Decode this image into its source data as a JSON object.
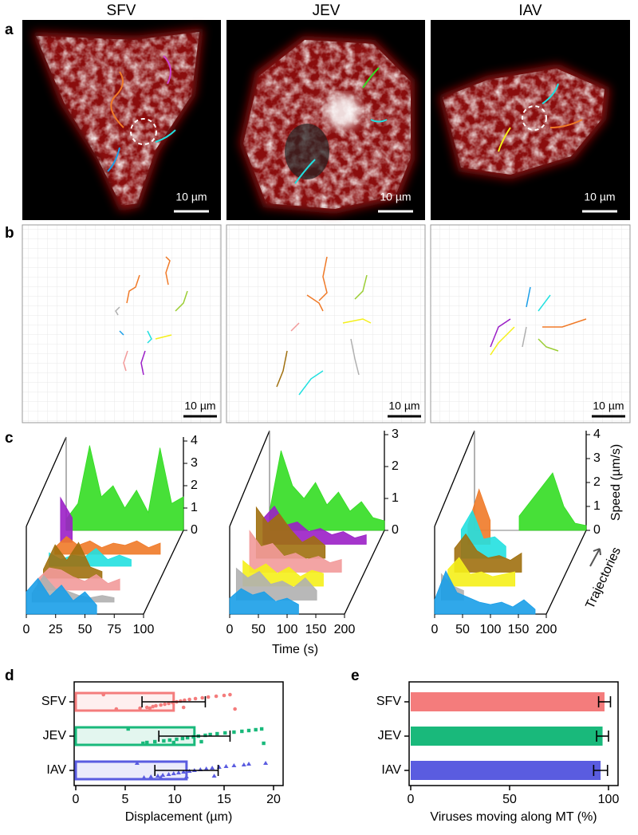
{
  "panel_labels": [
    "a",
    "b",
    "c",
    "d",
    "e"
  ],
  "columns": [
    "SFV",
    "JEV",
    "IAV"
  ],
  "scale_bar": "10 µm",
  "chart_data": [
    {
      "type": "speed-3d",
      "x": [
        0,
        10,
        20,
        30,
        40,
        50,
        60,
        70,
        80,
        90,
        100
      ],
      "xlim": [
        0,
        100
      ],
      "xticks": [
        0,
        25,
        50,
        75,
        100
      ],
      "ylim": [
        0,
        4
      ],
      "yticks": [
        0,
        1,
        2,
        3,
        4
      ],
      "series": [
        {
          "color": "#33dd22",
          "values": [
            0.5,
            1.2,
            3.8,
            1.5,
            2.0,
            1.0,
            1.8,
            0.8,
            3.7,
            1.2,
            1.5
          ]
        },
        {
          "color": "#9b1fc7",
          "values": [
            2.0,
            1.1,
            null,
            null,
            null,
            null,
            null,
            null,
            null,
            null,
            null
          ]
        },
        {
          "color": "#f07a28",
          "values": [
            0.3,
            0.8,
            0.4,
            0.6,
            0.3,
            0.5,
            0.4,
            0.6,
            0.3,
            0.5,
            null
          ]
        },
        {
          "color": "#22e0e0",
          "values": [
            0.6,
            0.3,
            0.5,
            0.4,
            0.8,
            0.3,
            0.5,
            0.3,
            null,
            null,
            null
          ]
        },
        {
          "color": "#a0700f",
          "values": [
            0.4,
            1.5,
            0.8,
            1.6,
            0.5,
            0.3,
            null,
            null,
            null,
            null,
            null
          ]
        },
        {
          "color": "#f29a9a",
          "values": [
            0.5,
            1.0,
            0.9,
            0.6,
            0.4,
            0.7,
            0.3,
            0.5,
            null,
            null,
            null
          ]
        },
        {
          "color": "#b0b0b0",
          "values": [
            0.4,
            1.2,
            0.6,
            0.5,
            0.3,
            0.2,
            0.3,
            0.2,
            null,
            null,
            null
          ]
        },
        {
          "color": "#1a9ee8",
          "values": [
            1.0,
            1.6,
            0.8,
            1.3,
            0.6,
            1.0,
            0.4,
            null,
            null,
            null,
            null
          ]
        }
      ]
    },
    {
      "type": "speed-3d",
      "x": [
        0,
        20,
        40,
        60,
        80,
        100,
        120,
        140,
        160,
        180,
        200
      ],
      "xlim": [
        0,
        200
      ],
      "xticks": [
        0,
        50,
        100,
        150,
        200
      ],
      "ylim": [
        0,
        3
      ],
      "yticks": [
        0,
        1,
        2,
        3
      ],
      "xlabel": "Time (s)",
      "series": [
        {
          "color": "#33dd22",
          "values": [
            0.6,
            2.5,
            1.4,
            1.0,
            1.5,
            0.8,
            1.2,
            0.6,
            0.9,
            0.4,
            0.3
          ]
        },
        {
          "color": "#9b1fc7",
          "values": [
            0.8,
            1.2,
            0.6,
            0.7,
            0.4,
            0.5,
            0.3,
            0.4,
            0.2,
            0.3,
            null
          ]
        },
        {
          "color": "#a0700f",
          "values": [
            1.6,
            1.1,
            1.4,
            0.9,
            0.5,
            0.7,
            0.4,
            null,
            null,
            null,
            null
          ]
        },
        {
          "color": "#f29a9a",
          "values": [
            1.3,
            0.8,
            0.9,
            0.5,
            0.6,
            0.4,
            0.5,
            0.3,
            0.4,
            null,
            null
          ]
        },
        {
          "color": "#f5f01a",
          "values": [
            0.8,
            0.5,
            0.7,
            0.4,
            0.6,
            0.3,
            0.5,
            0.4,
            null,
            null,
            null
          ]
        },
        {
          "color": "#b0b0b0",
          "values": [
            1.0,
            0.7,
            0.9,
            0.5,
            0.6,
            0.4,
            0.7,
            0.3,
            null,
            null,
            null
          ]
        },
        {
          "color": "#1a9ee8",
          "values": [
            0.5,
            0.8,
            0.6,
            0.7,
            0.4,
            0.5,
            0.3,
            null,
            null,
            null,
            null
          ]
        }
      ]
    },
    {
      "type": "speed-3d",
      "x": [
        0,
        20,
        40,
        60,
        80,
        100,
        120,
        140,
        160,
        180,
        200
      ],
      "xlim": [
        0,
        200
      ],
      "xticks": [
        0,
        50,
        100,
        150,
        200
      ],
      "ylim": [
        0,
        4
      ],
      "yticks": [
        0,
        1,
        2,
        3,
        4
      ],
      "ylabel": "Speed (µm/s)",
      "zlabel": "Trajectories",
      "series": [
        {
          "color": "#33dd22",
          "values": [
            null,
            null,
            null,
            null,
            0.6,
            1.2,
            1.8,
            2.4,
            1.0,
            0.3,
            0.2
          ]
        },
        {
          "color": "#f07a28",
          "values": [
            0.8,
            2.3,
            1.0,
            null,
            null,
            null,
            null,
            null,
            null,
            null,
            null
          ]
        },
        {
          "color": "#22e0e0",
          "values": [
            1.2,
            2.0,
            0.8,
            0.9,
            0.5,
            null,
            null,
            null,
            null,
            null,
            null
          ]
        },
        {
          "color": "#a0700f",
          "values": [
            1.0,
            1.6,
            0.9,
            0.6,
            0.7,
            0.5,
            0.8,
            null,
            null,
            null,
            null
          ]
        },
        {
          "color": "#f5f01a",
          "values": [
            0.7,
            1.2,
            0.5,
            0.6,
            0.4,
            0.5,
            0.6,
            null,
            null,
            null,
            null
          ]
        },
        {
          "color": "#b0b0b0",
          "values": [
            1.1,
            0.6,
            0.4,
            null,
            null,
            null,
            null,
            null,
            null,
            null,
            null
          ]
        },
        {
          "color": "#1a9ee8",
          "values": [
            0.6,
            1.8,
            0.9,
            0.7,
            0.5,
            0.4,
            0.5,
            0.3,
            0.6,
            0.2,
            null
          ]
        }
      ]
    },
    {
      "type": "hbar-scatter",
      "categories": [
        "SFV",
        "JEV",
        "IAV"
      ],
      "values": [
        9.9,
        12.0,
        11.2
      ],
      "errors": [
        3.2,
        3.6,
        3.2
      ],
      "colors": [
        "#f47c7c",
        "#19b97b",
        "#5a5ce0"
      ],
      "markers": [
        "circle",
        "square",
        "triangle"
      ],
      "points": [
        [
          2.8,
          4.1,
          6.5,
          7.2,
          7.8,
          8.1,
          8.6,
          9.0,
          9.4,
          9.8,
          10.2,
          10.6,
          11.0,
          11.5,
          12.1,
          12.8,
          13.4,
          14.2,
          15.0,
          15.6,
          16.1,
          7.5,
          10.9
        ],
        [
          5.3,
          6.8,
          7.2,
          8.0,
          8.9,
          9.5,
          10.2,
          10.8,
          11.3,
          11.9,
          12.4,
          13.1,
          13.6,
          14.3,
          15.1,
          16.0,
          16.8,
          17.5,
          18.2,
          18.8,
          19.0,
          9.9,
          12.7
        ],
        [
          6.2,
          6.9,
          7.6,
          8.3,
          8.8,
          9.4,
          9.9,
          10.4,
          10.9,
          11.5,
          12.0,
          12.6,
          13.2,
          13.8,
          14.5,
          15.2,
          16.0,
          17.0,
          17.5,
          19.2,
          8.6,
          11.2,
          14.0
        ]
      ],
      "xlim": [
        0,
        20
      ],
      "xticks": [
        0,
        5,
        10,
        15,
        20
      ],
      "xlabel": "Displacement (µm)"
    },
    {
      "type": "hbar",
      "categories": [
        "SFV",
        "JEV",
        "IAV"
      ],
      "values": [
        98,
        97,
        96
      ],
      "errors": [
        3,
        3,
        3.5
      ],
      "colors": [
        "#f47c7c",
        "#19b97b",
        "#5a5ce0"
      ],
      "xlim": [
        0,
        100
      ],
      "xticks": [
        0,
        50,
        100
      ],
      "xlabel": "Viruses moving along MT (%)"
    }
  ]
}
